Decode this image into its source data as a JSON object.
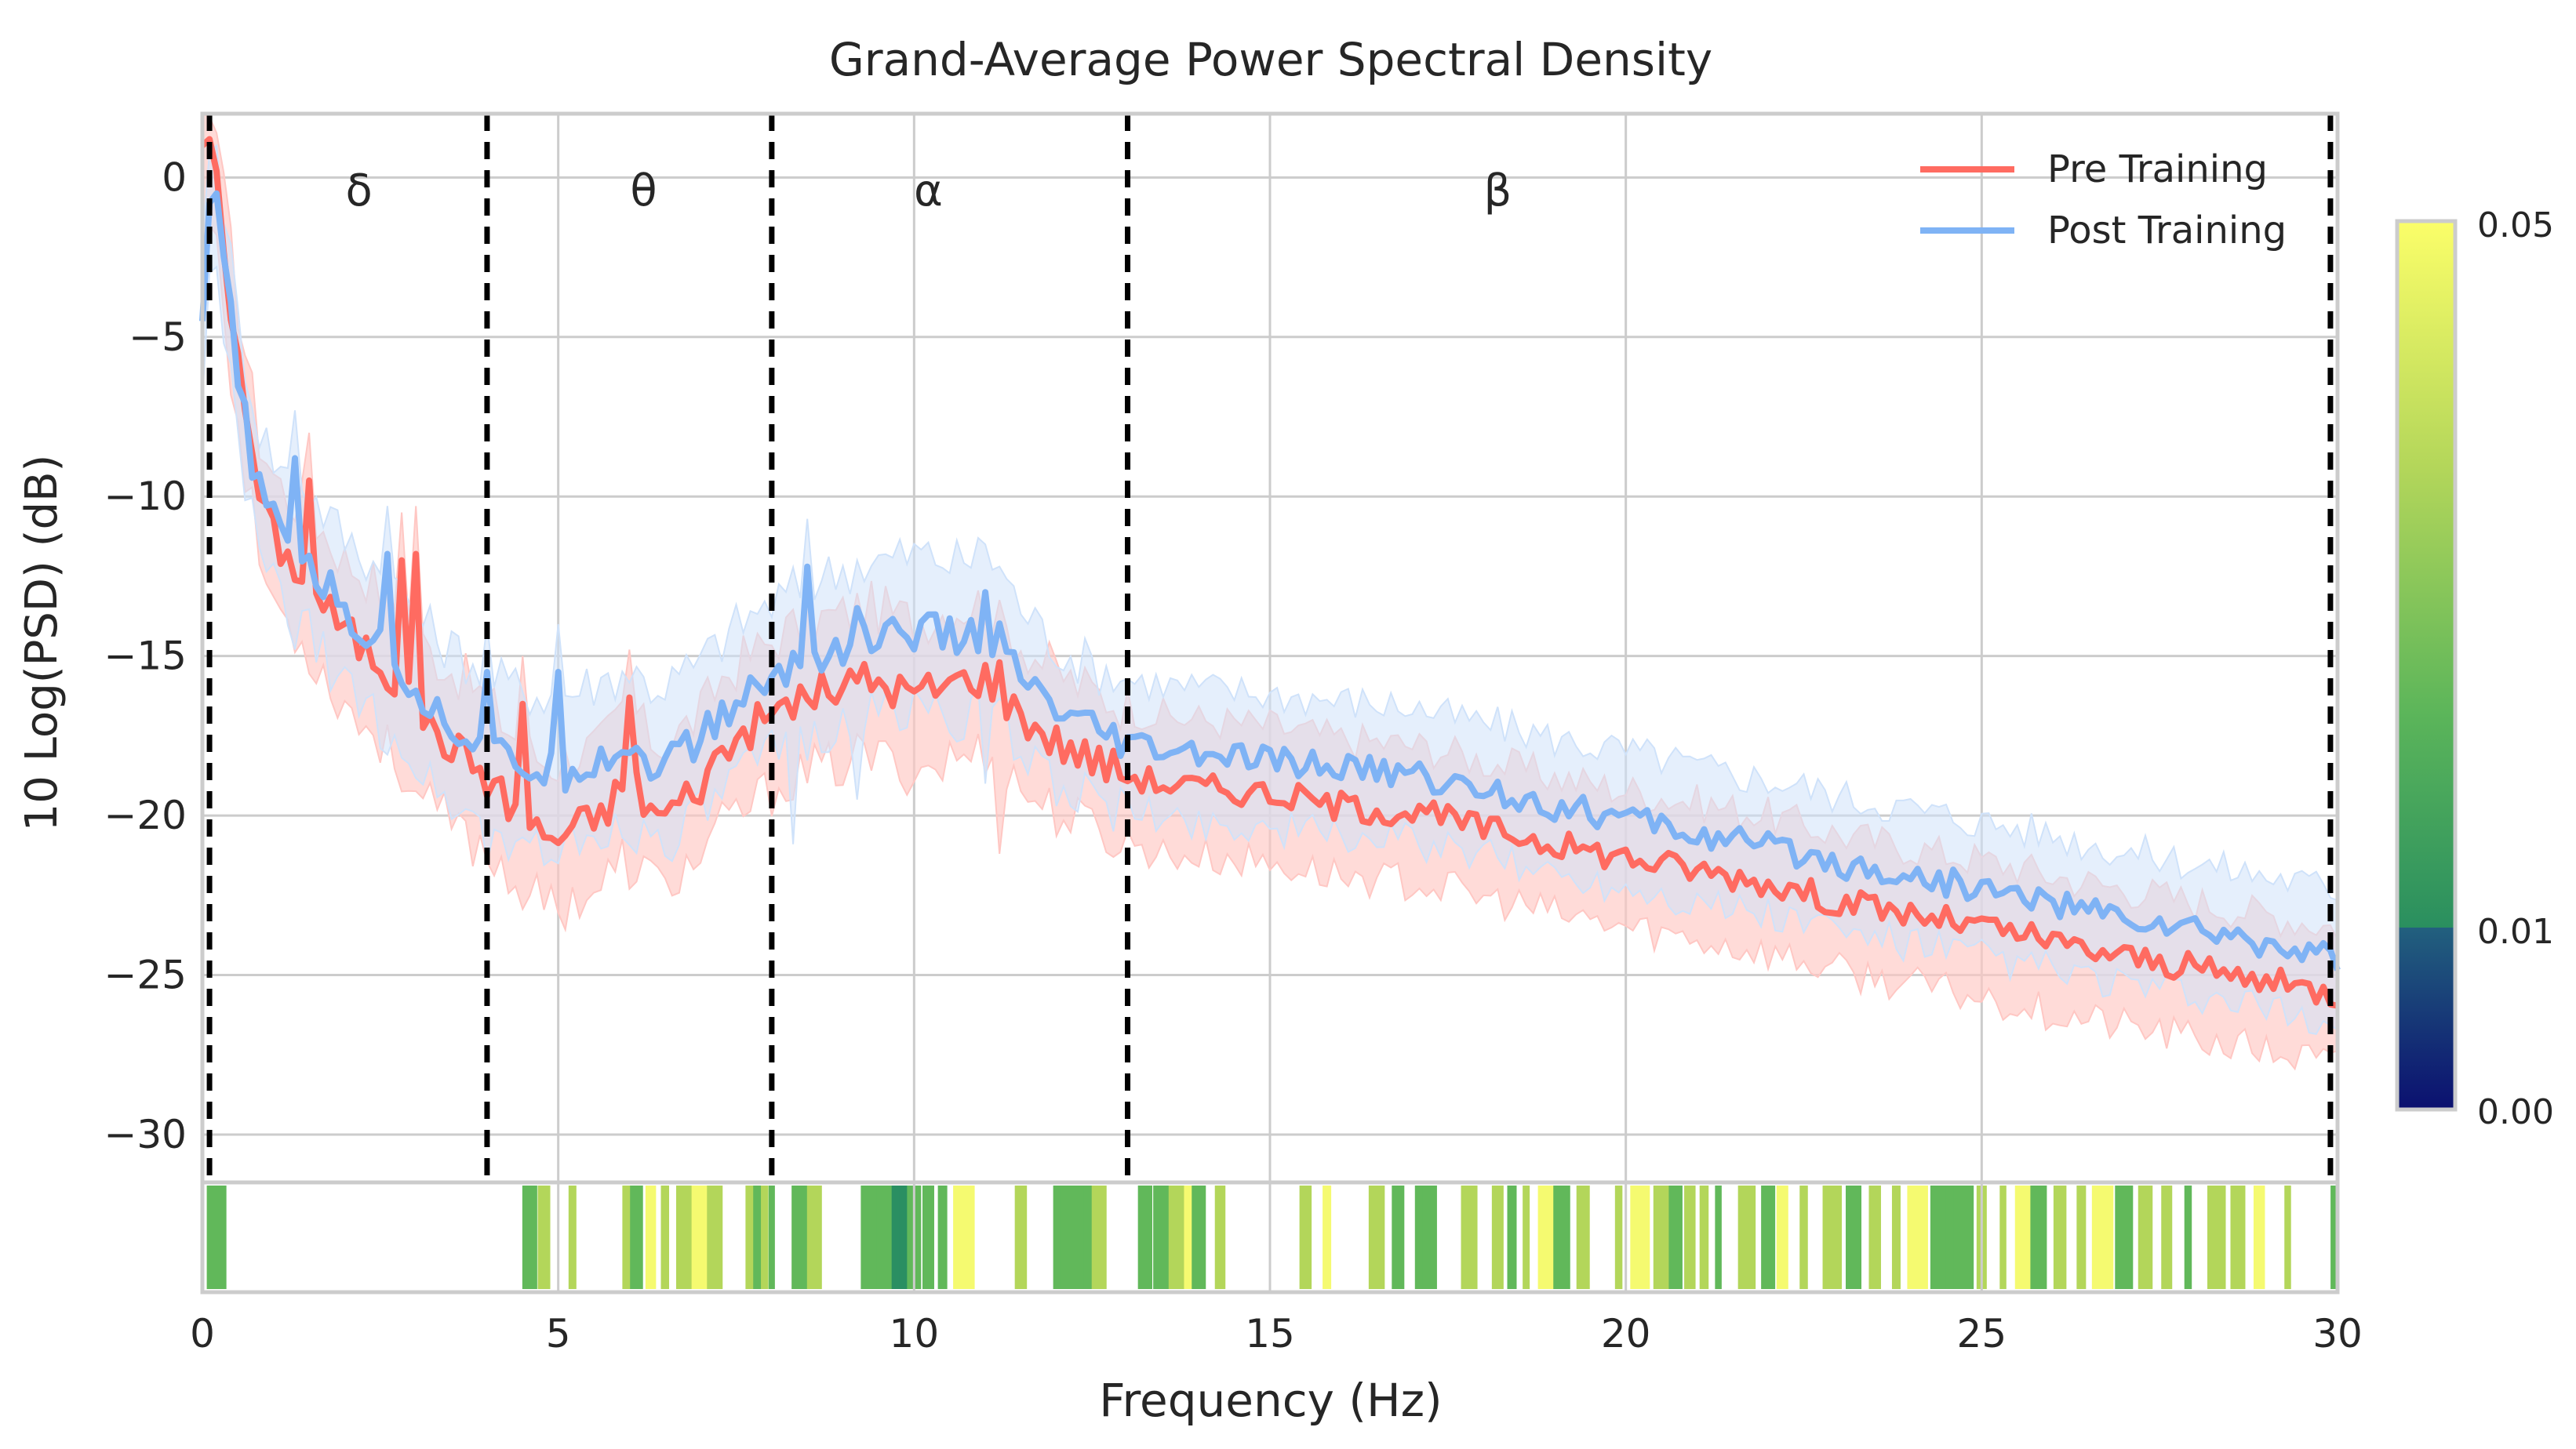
{
  "chart_data": {
    "type": "line",
    "title": "Grand-Average Power Spectral Density",
    "xlabel": "Frequency (Hz)",
    "ylabel": "10 Log(PSD) (dB)",
    "xlim": [
      0,
      30
    ],
    "ylim": [
      -31.5,
      2
    ],
    "xticks": [
      0,
      5,
      10,
      15,
      20,
      25,
      30
    ],
    "yticks": [
      0,
      -5,
      -10,
      -15,
      -20,
      -25,
      -30
    ],
    "grid": true,
    "legend_position": "top-right",
    "band_boundaries_hz": [
      0.1,
      4,
      8,
      13,
      29.9
    ],
    "bands": [
      {
        "label": "δ",
        "center_hz": 2.2
      },
      {
        "label": "θ",
        "center_hz": 6.2
      },
      {
        "label": "α",
        "center_hz": 10.2
      },
      {
        "label": "β",
        "center_hz": 18.2
      }
    ],
    "series": [
      {
        "name": "Pre Training",
        "color": "#ff6b61",
        "band_color": "#ffc7c3",
        "x": [
          0,
          0.1,
          0.2,
          0.3,
          0.5,
          0.7,
          0.8,
          1.0,
          1.2,
          1.5,
          1.6,
          1.8,
          2.0,
          2.2,
          2.4,
          2.6,
          2.8,
          3.0,
          3.2,
          3.4,
          3.6,
          3.8,
          4.0,
          4.3,
          4.6,
          4.8,
          5.0,
          5.3,
          5.6,
          5.8,
          6.0,
          6.2,
          6.4,
          6.6,
          7.0,
          7.3,
          7.6,
          7.9,
          8.2,
          8.6,
          9.0,
          9.3,
          9.6,
          10.0,
          10.3,
          10.6,
          11.0,
          11.2,
          11.4,
          11.7,
          12.0,
          12.3,
          12.6,
          13.0,
          13.5,
          14.0,
          14.5,
          15.0,
          15.5,
          16.0,
          16.5,
          17.0,
          17.5,
          18.0,
          18.5,
          19.0,
          19.5,
          20.0,
          20.5,
          21.0,
          21.5,
          22.0,
          22.5,
          23.0,
          23.5,
          24.0,
          24.5,
          25.0,
          25.5,
          26.0,
          26.5,
          27.0,
          27.5,
          28.0,
          28.5,
          29.0,
          29.5,
          30.0
        ],
        "mean": [
          1.0,
          1.2,
          0.2,
          -2.0,
          -6.0,
          -8.5,
          -10.0,
          -11.2,
          -12.0,
          -12.5,
          -13.0,
          -13.6,
          -14.2,
          -14.6,
          -15.0,
          -15.5,
          -16.0,
          -16.8,
          -17.3,
          -17.6,
          -18.0,
          -18.3,
          -18.8,
          -19.6,
          -20.3,
          -20.6,
          -20.7,
          -20.3,
          -20.0,
          -19.4,
          -18.6,
          -19.5,
          -20.0,
          -19.8,
          -19.0,
          -18.0,
          -17.4,
          -17.0,
          -16.5,
          -16.2,
          -16.0,
          -15.7,
          -15.9,
          -16.2,
          -16.0,
          -15.8,
          -15.6,
          -16.2,
          -16.6,
          -17.2,
          -17.7,
          -18.0,
          -18.3,
          -18.7,
          -19.0,
          -19.1,
          -19.2,
          -19.3,
          -19.5,
          -19.7,
          -19.8,
          -19.9,
          -20.1,
          -20.4,
          -20.6,
          -20.9,
          -21.1,
          -21.3,
          -21.5,
          -21.7,
          -21.9,
          -22.1,
          -22.4,
          -22.7,
          -22.9,
          -23.1,
          -23.3,
          -23.5,
          -23.7,
          -24.0,
          -24.2,
          -24.4,
          -24.6,
          -24.8,
          -25.0,
          -25.2,
          -25.4,
          -25.6
        ],
        "lower": [
          -2.0,
          -1.5,
          -1.8,
          -4.0,
          -8.0,
          -10.5,
          -12.0,
          -13.2,
          -14.0,
          -14.8,
          -15.3,
          -15.9,
          -16.5,
          -17.0,
          -17.4,
          -17.9,
          -18.5,
          -19.3,
          -19.8,
          -20.1,
          -20.5,
          -20.8,
          -21.2,
          -21.8,
          -22.5,
          -22.8,
          -22.9,
          -22.5,
          -22.2,
          -21.6,
          -21.0,
          -21.7,
          -22.2,
          -22.0,
          -21.3,
          -20.4,
          -19.8,
          -19.4,
          -18.9,
          -18.6,
          -18.4,
          -18.1,
          -18.3,
          -18.6,
          -18.4,
          -18.2,
          -18.0,
          -18.5,
          -18.9,
          -19.5,
          -19.9,
          -20.2,
          -20.5,
          -20.9,
          -21.2,
          -21.3,
          -21.4,
          -21.5,
          -21.7,
          -21.9,
          -22.0,
          -22.1,
          -22.3,
          -22.6,
          -22.8,
          -23.1,
          -23.3,
          -23.5,
          -23.7,
          -23.9,
          -24.1,
          -24.3,
          -24.6,
          -24.9,
          -25.1,
          -25.3,
          -25.5,
          -25.7,
          -25.9,
          -26.2,
          -26.4,
          -26.6,
          -26.8,
          -27.0,
          -27.2,
          -27.4,
          -27.6,
          -27.8
        ],
        "upper": [
          2.0,
          1.9,
          1.4,
          -0.5,
          -4.0,
          -6.8,
          -8.2,
          -9.3,
          -10.0,
          -10.4,
          -10.8,
          -11.4,
          -12.0,
          -12.3,
          -12.7,
          -13.2,
          -13.6,
          -14.4,
          -14.9,
          -15.2,
          -15.6,
          -15.9,
          -16.4,
          -17.3,
          -18.0,
          -18.3,
          -18.4,
          -18.0,
          -17.8,
          -17.2,
          -16.3,
          -17.3,
          -17.8,
          -17.6,
          -16.8,
          -15.7,
          -15.1,
          -14.7,
          -14.2,
          -13.9,
          -13.7,
          -13.4,
          -13.6,
          -13.9,
          -13.7,
          -13.5,
          -13.3,
          -14.0,
          -14.4,
          -15.0,
          -15.5,
          -15.9,
          -16.2,
          -16.6,
          -16.9,
          -17.0,
          -17.1,
          -17.2,
          -17.4,
          -17.6,
          -17.7,
          -17.8,
          -18.0,
          -18.3,
          -18.5,
          -18.8,
          -19.0,
          -19.2,
          -19.4,
          -19.6,
          -19.8,
          -20.0,
          -20.3,
          -20.6,
          -20.8,
          -21.0,
          -21.2,
          -21.4,
          -21.6,
          -21.9,
          -22.1,
          -22.3,
          -22.5,
          -22.7,
          -22.9,
          -23.1,
          -23.3,
          -23.5
        ],
        "spikes": [
          [
            1.5,
            -9.5
          ],
          [
            2.8,
            -12.0
          ],
          [
            3.0,
            -11.8
          ],
          [
            4.5,
            -16.5
          ],
          [
            6.0,
            -16.3
          ],
          [
            11.2,
            -15.2
          ]
        ]
      },
      {
        "name": "Post Training",
        "color": "#7fb3f5",
        "band_color": "#cfe2fa",
        "x": [
          0,
          0.1,
          0.2,
          0.3,
          0.5,
          0.7,
          0.8,
          1.0,
          1.2,
          1.5,
          1.6,
          1.8,
          2.0,
          2.2,
          2.4,
          2.6,
          2.8,
          3.0,
          3.2,
          3.4,
          3.6,
          3.8,
          4.0,
          4.3,
          4.6,
          4.8,
          5.0,
          5.3,
          5.6,
          5.8,
          6.0,
          6.2,
          6.4,
          6.6,
          7.0,
          7.3,
          7.6,
          7.9,
          8.2,
          8.6,
          9.0,
          9.3,
          9.6,
          10.0,
          10.3,
          10.6,
          11.0,
          11.2,
          11.4,
          11.7,
          12.0,
          12.3,
          12.6,
          13.0,
          13.5,
          14.0,
          14.5,
          15.0,
          15.5,
          16.0,
          16.5,
          17.0,
          17.5,
          18.0,
          18.5,
          19.0,
          19.5,
          20.0,
          20.5,
          21.0,
          21.5,
          22.0,
          22.5,
          23.0,
          23.5,
          24.0,
          24.5,
          25.0,
          25.5,
          26.0,
          26.5,
          27.0,
          27.5,
          28.0,
          28.5,
          29.0,
          29.5,
          30.0
        ],
        "mean": [
          -4.5,
          -0.8,
          -0.5,
          -2.5,
          -6.5,
          -8.8,
          -9.8,
          -10.8,
          -11.5,
          -12.0,
          -12.5,
          -13.0,
          -13.6,
          -14.1,
          -14.5,
          -15.0,
          -15.4,
          -16.0,
          -16.6,
          -17.0,
          -17.3,
          -17.6,
          -18.0,
          -18.3,
          -18.5,
          -18.6,
          -18.7,
          -18.4,
          -18.2,
          -18.0,
          -17.8,
          -18.2,
          -18.4,
          -18.2,
          -17.6,
          -16.9,
          -16.3,
          -15.9,
          -15.5,
          -15.0,
          -14.7,
          -14.5,
          -14.4,
          -14.2,
          -14.3,
          -14.5,
          -14.2,
          -14.6,
          -15.4,
          -16.2,
          -16.8,
          -17.2,
          -17.5,
          -17.8,
          -18.0,
          -18.1,
          -18.2,
          -18.3,
          -18.4,
          -18.5,
          -18.6,
          -18.7,
          -19.0,
          -19.2,
          -19.4,
          -19.7,
          -19.9,
          -20.1,
          -20.3,
          -20.6,
          -20.8,
          -21.0,
          -21.2,
          -21.5,
          -21.7,
          -21.9,
          -22.1,
          -22.3,
          -22.5,
          -22.7,
          -23.0,
          -23.2,
          -23.4,
          -23.6,
          -23.8,
          -24.0,
          -24.2,
          -24.4
        ],
        "lower": [
          -7.0,
          -3.0,
          -2.8,
          -4.5,
          -8.5,
          -10.8,
          -11.8,
          -12.8,
          -13.6,
          -14.3,
          -14.8,
          -15.3,
          -15.9,
          -16.5,
          -16.9,
          -17.4,
          -17.8,
          -18.4,
          -19.0,
          -19.4,
          -19.7,
          -20.0,
          -20.4,
          -20.7,
          -20.9,
          -21.0,
          -21.1,
          -20.8,
          -20.6,
          -20.4,
          -20.2,
          -20.6,
          -20.8,
          -20.6,
          -20.0,
          -19.3,
          -18.7,
          -18.3,
          -17.9,
          -17.4,
          -17.1,
          -16.9,
          -16.8,
          -16.6,
          -16.7,
          -16.9,
          -16.6,
          -17.0,
          -17.7,
          -18.4,
          -18.9,
          -19.3,
          -19.6,
          -19.9,
          -20.1,
          -20.2,
          -20.3,
          -20.4,
          -20.5,
          -20.6,
          -20.7,
          -20.8,
          -21.1,
          -21.3,
          -21.5,
          -21.8,
          -22.0,
          -22.2,
          -22.4,
          -22.7,
          -22.9,
          -23.1,
          -23.3,
          -23.6,
          -23.8,
          -24.0,
          -24.2,
          -24.4,
          -24.6,
          -24.8,
          -25.1,
          -25.3,
          -25.5,
          -25.7,
          -25.9,
          -26.1,
          -26.3,
          -26.5
        ],
        "upper": [
          -2.0,
          0.8,
          1.0,
          -0.8,
          -4.5,
          -6.8,
          -7.8,
          -8.8,
          -9.4,
          -9.8,
          -10.2,
          -10.7,
          -11.3,
          -11.7,
          -12.1,
          -12.6,
          -13.0,
          -13.6,
          -14.2,
          -14.6,
          -14.9,
          -15.2,
          -15.6,
          -15.9,
          -16.1,
          -16.2,
          -16.3,
          -16.0,
          -15.8,
          -15.6,
          -15.4,
          -15.8,
          -16.0,
          -15.8,
          -15.2,
          -14.5,
          -13.9,
          -13.5,
          -13.1,
          -12.6,
          -12.3,
          -12.1,
          -12.0,
          -11.8,
          -11.9,
          -12.1,
          -11.8,
          -12.2,
          -13.1,
          -14.0,
          -14.7,
          -15.1,
          -15.4,
          -15.7,
          -15.9,
          -16.0,
          -16.1,
          -16.2,
          -16.3,
          -16.4,
          -16.5,
          -16.6,
          -16.9,
          -17.1,
          -17.3,
          -17.6,
          -17.8,
          -18.0,
          -18.2,
          -18.5,
          -18.7,
          -18.9,
          -19.1,
          -19.4,
          -19.6,
          -19.8,
          -20.0,
          -20.2,
          -20.4,
          -20.6,
          -20.9,
          -21.1,
          -21.3,
          -21.5,
          -21.7,
          -21.9,
          -22.1,
          -22.3
        ],
        "spikes": [
          [
            1.3,
            -8.8
          ],
          [
            2.6,
            -11.8
          ],
          [
            4.0,
            -15.5
          ],
          [
            5.0,
            -15.5
          ],
          [
            8.3,
            -14.9
          ],
          [
            8.5,
            -12.2
          ],
          [
            9.2,
            -13.5
          ],
          [
            11.0,
            -13.0
          ]
        ]
      }
    ],
    "significance_strip": {
      "description": "p-value per frequency bin (only significant bins drawn)",
      "colormap": [
        "#0b1f6e",
        "#1f5e7a",
        "#2a8f62",
        "#61b85a",
        "#b3d65a",
        "#f5fa70"
      ],
      "segments": [
        [
          0.15,
          0.04
        ],
        [
          0.2,
          0.03
        ],
        [
          4.6,
          0.03
        ],
        [
          4.8,
          0.035
        ],
        [
          5.2,
          0.04
        ],
        [
          6.0,
          0.04
        ],
        [
          6.1,
          0.03
        ],
        [
          6.3,
          0.045
        ],
        [
          6.5,
          0.04
        ],
        [
          6.8,
          0.035
        ],
        [
          7.0,
          0.045
        ],
        [
          7.2,
          0.04
        ],
        [
          7.7,
          0.035
        ],
        [
          7.8,
          0.03
        ],
        [
          7.9,
          0.04
        ],
        [
          8.0,
          0.03
        ],
        [
          8.4,
          0.025
        ],
        [
          8.6,
          0.04
        ],
        [
          9.4,
          0.025
        ],
        [
          9.5,
          0.02
        ],
        [
          9.6,
          0.03
        ],
        [
          9.8,
          0.015
        ],
        [
          9.9,
          0.012
        ],
        [
          10.0,
          0.02
        ],
        [
          10.2,
          0.025
        ],
        [
          10.4,
          0.03
        ],
        [
          10.7,
          0.045
        ],
        [
          11.5,
          0.04
        ],
        [
          12.1,
          0.025
        ],
        [
          12.2,
          0.02
        ],
        [
          12.3,
          0.03
        ],
        [
          12.5,
          0.02
        ],
        [
          12.6,
          0.035
        ],
        [
          13.2,
          0.02
        ],
        [
          13.3,
          0.025
        ],
        [
          13.5,
          0.03
        ],
        [
          13.7,
          0.035
        ],
        [
          13.9,
          0.045
        ],
        [
          14.0,
          0.03
        ],
        [
          14.3,
          0.04
        ],
        [
          15.5,
          0.035
        ],
        [
          15.8,
          0.045
        ],
        [
          16.5,
          0.04
        ],
        [
          16.8,
          0.03
        ],
        [
          17.1,
          0.02
        ],
        [
          17.2,
          0.025
        ],
        [
          17.3,
          0.03
        ],
        [
          17.8,
          0.04
        ],
        [
          18.2,
          0.035
        ],
        [
          18.4,
          0.025
        ],
        [
          18.6,
          0.04
        ],
        [
          18.9,
          0.045
        ],
        [
          19.1,
          0.03
        ],
        [
          19.4,
          0.04
        ],
        [
          19.9,
          0.035
        ],
        [
          20.2,
          0.045
        ],
        [
          20.5,
          0.04
        ],
        [
          20.7,
          0.03
        ],
        [
          20.9,
          0.035
        ],
        [
          21.1,
          0.04
        ],
        [
          21.3,
          0.025
        ],
        [
          21.7,
          0.04
        ],
        [
          22.0,
          0.03
        ],
        [
          22.2,
          0.045
        ],
        [
          22.5,
          0.035
        ],
        [
          22.9,
          0.04
        ],
        [
          23.2,
          0.025
        ],
        [
          23.5,
          0.035
        ],
        [
          23.8,
          0.04
        ],
        [
          24.1,
          0.045
        ],
        [
          24.4,
          0.03
        ],
        [
          24.6,
          0.02
        ],
        [
          24.7,
          0.025
        ],
        [
          24.8,
          0.03
        ],
        [
          25.0,
          0.035
        ],
        [
          25.3,
          0.04
        ],
        [
          25.6,
          0.045
        ],
        [
          25.8,
          0.03
        ],
        [
          26.1,
          0.035
        ],
        [
          26.4,
          0.04
        ],
        [
          26.7,
          0.045
        ],
        [
          27.0,
          0.03
        ],
        [
          27.3,
          0.035
        ],
        [
          27.6,
          0.04
        ],
        [
          27.9,
          0.03
        ],
        [
          28.3,
          0.035
        ],
        [
          28.6,
          0.04
        ],
        [
          28.9,
          0.045
        ],
        [
          29.3,
          0.04
        ],
        [
          29.95,
          0.02
        ]
      ]
    },
    "colorbar": {
      "ticks": [
        "0.00",
        "0.01",
        "0.05"
      ],
      "range": [
        0,
        0.05
      ]
    }
  }
}
